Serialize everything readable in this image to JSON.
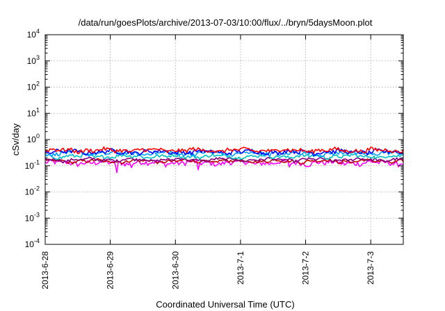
{
  "chart_data": {
    "type": "line",
    "title": "/data/run/goesPlots/archive/2013-07-03/10:00/flux/../bryn/5daysMoon.plot",
    "xlabel": "Coordinated Universal Time (UTC)",
    "ylabel": "cSv/day",
    "yscale": "log",
    "ylim": [
      0.0001,
      10000
    ],
    "xlim": [
      "2013-06-28",
      "2013-07-03 12:00"
    ],
    "x_ticks": [
      "2013-6-28",
      "2013-6-29",
      "2013-6-30",
      "2013-7-1",
      "2013-7-2",
      "2013-7-3"
    ],
    "y_ticks": [
      {
        "base": "10",
        "exp": "-4"
      },
      {
        "base": "10",
        "exp": "-3"
      },
      {
        "base": "10",
        "exp": "-2"
      },
      {
        "base": "10",
        "exp": "-1"
      },
      {
        "base": "10",
        "exp": "0"
      },
      {
        "base": "10",
        "exp": "1"
      },
      {
        "base": "10",
        "exp": "2"
      },
      {
        "base": "10",
        "exp": "3"
      },
      {
        "base": "10",
        "exp": "4"
      }
    ],
    "grid": true,
    "series": [
      {
        "color": "#ff00ff",
        "level": 0.13,
        "jitter": 0.22,
        "dips": [
          [
            1.1,
            0.055
          ],
          [
            1.33,
            0.085
          ],
          [
            2.35,
            0.07
          ],
          [
            3.75,
            0.09
          ]
        ]
      },
      {
        "color": "#c00000",
        "level": 0.15,
        "jitter": 0.12,
        "dips": []
      },
      {
        "color": "#800080",
        "level": 0.17,
        "jitter": 0.12,
        "dips": []
      },
      {
        "color": "#00c0c0",
        "level": 0.23,
        "jitter": 0.15,
        "dips": []
      },
      {
        "color": "#00a0ff",
        "level": 0.3,
        "jitter": 0.18,
        "dips": []
      },
      {
        "color": "#0000ff",
        "level": 0.34,
        "jitter": 0.18,
        "dips": []
      },
      {
        "color": "#ff0000",
        "level": 0.39,
        "jitter": 0.18,
        "dips": []
      }
    ]
  }
}
